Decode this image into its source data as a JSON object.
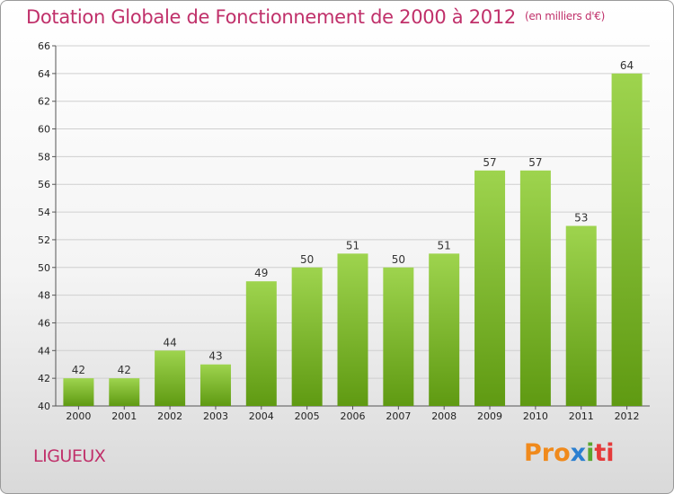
{
  "header": {
    "title": "Dotation Globale de Fonctionnement de 2000 à 2012",
    "subtitle": "(en milliers d'€)"
  },
  "footer": {
    "commune": "LIGUEUX",
    "logo": [
      "Pro",
      "x",
      "i",
      "ti"
    ]
  },
  "colors": {
    "title": "#c0306a",
    "bar_top": "#9ed44e",
    "bar_bottom": "#5f9a12",
    "grid": "#cfcfcf"
  },
  "chart_data": {
    "type": "bar",
    "title": "Dotation Globale de Fonctionnement de 2000 à 2012",
    "subtitle": "(en milliers d'€)",
    "categories": [
      "2000",
      "2001",
      "2002",
      "2003",
      "2004",
      "2005",
      "2006",
      "2007",
      "2008",
      "2009",
      "2010",
      "2011",
      "2012"
    ],
    "values": [
      42,
      42,
      44,
      43,
      49,
      50,
      51,
      50,
      51,
      57,
      57,
      53,
      64
    ],
    "ylim": [
      40,
      66
    ],
    "yticks": [
      40,
      42,
      44,
      46,
      48,
      50,
      52,
      54,
      56,
      58,
      60,
      62,
      64,
      66
    ],
    "grid": true,
    "legend": "none"
  }
}
